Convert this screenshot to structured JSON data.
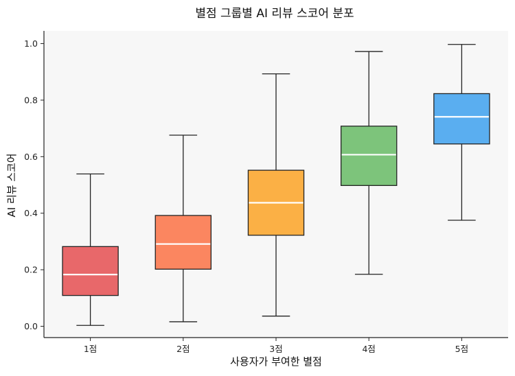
{
  "chart_data": {
    "type": "box",
    "title": "별점 그룹별 AI 리뷰 스코어 분포",
    "xlabel": "사용자가 부여한 별점",
    "ylabel": "AI 리뷰 스코어",
    "categories": [
      "1점",
      "2점",
      "3점",
      "4점",
      "5점"
    ],
    "ylim": [
      -0.04,
      1.045
    ],
    "yticks": [
      0.0,
      0.2,
      0.4,
      0.6,
      0.8,
      1.0
    ],
    "ytick_labels": [
      "0.0",
      "0.2",
      "0.4",
      "0.6",
      "0.8",
      "1.0"
    ],
    "grid": false,
    "plot_background": "#f7f7f7",
    "median_color": "#ffffff",
    "boxes": [
      {
        "category": "1점",
        "whisker_low": 0.003,
        "q1": 0.109,
        "median": 0.183,
        "q3": 0.282,
        "whisker_high": 0.539,
        "color": "#e8686a"
      },
      {
        "category": "2점",
        "whisker_low": 0.016,
        "q1": 0.202,
        "median": 0.291,
        "q3": 0.392,
        "whisker_high": 0.676,
        "color": "#fb8660"
      },
      {
        "category": "3점",
        "whisker_low": 0.036,
        "q1": 0.322,
        "median": 0.437,
        "q3": 0.552,
        "whisker_high": 0.893,
        "color": "#fbb045"
      },
      {
        "category": "4점",
        "whisker_low": 0.184,
        "q1": 0.498,
        "median": 0.607,
        "q3": 0.708,
        "whisker_high": 0.972,
        "color": "#7dc47b"
      },
      {
        "category": "5점",
        "whisker_low": 0.375,
        "q1": 0.645,
        "median": 0.741,
        "q3": 0.823,
        "whisker_high": 0.997,
        "color": "#5aaef0"
      }
    ]
  }
}
